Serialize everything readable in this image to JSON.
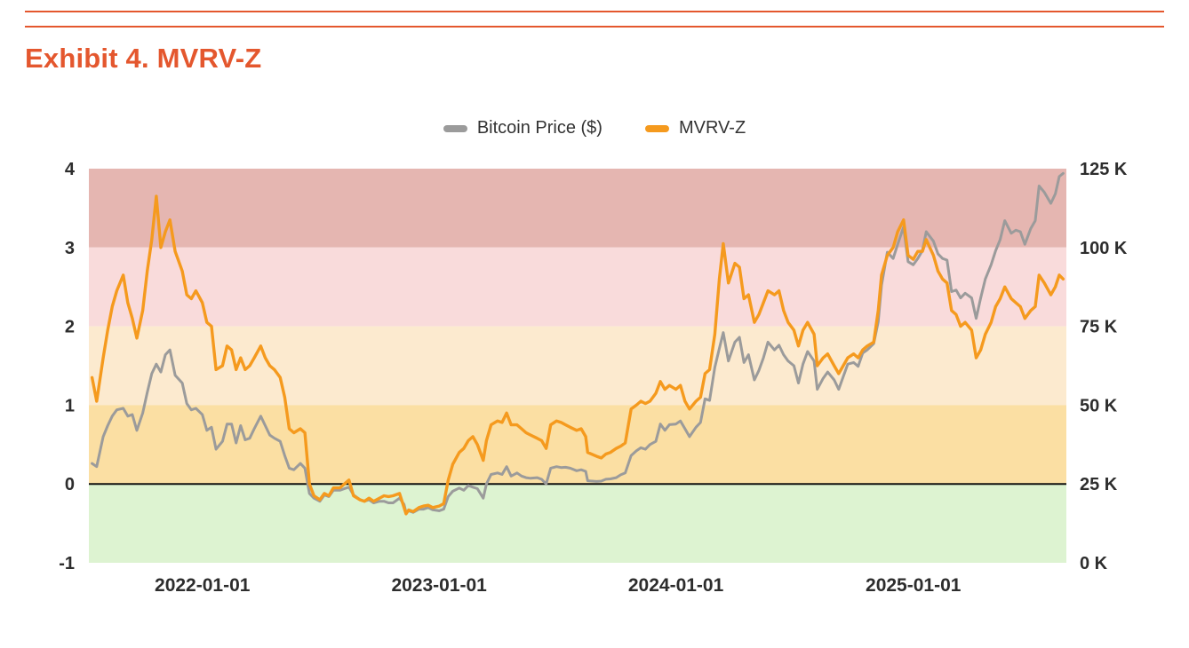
{
  "page": {
    "title": "Exhibit 4. MVRV-Z",
    "accent_color": "#E4572E"
  },
  "chart_data": {
    "type": "line",
    "title": "Exhibit 4. MVRV-Z",
    "legend_position": "top-center",
    "grid": false,
    "x_domain": [
      "2021-07-10",
      "2025-08-25"
    ],
    "x_ticks": [
      {
        "value": "2022-01-01",
        "label": "2022-01-01"
      },
      {
        "value": "2023-01-01",
        "label": "2023-01-01"
      },
      {
        "value": "2024-01-01",
        "label": "2024-01-01"
      },
      {
        "value": "2025-01-01",
        "label": "2025-01-01"
      }
    ],
    "left_axis": {
      "min": -1,
      "max": 4,
      "ticks": [
        {
          "value": 4,
          "label": "4"
        },
        {
          "value": 3,
          "label": "3"
        },
        {
          "value": 2,
          "label": "2"
        },
        {
          "value": 1,
          "label": "1"
        },
        {
          "value": 0,
          "label": "0"
        },
        {
          "value": -1,
          "label": "-1"
        }
      ]
    },
    "right_axis": {
      "min": 0,
      "max": 125,
      "ticks": [
        {
          "value": 125,
          "label": "125 K"
        },
        {
          "value": 100,
          "label": "100 K"
        },
        {
          "value": 75,
          "label": "75 K"
        },
        {
          "value": 50,
          "label": "50 K"
        },
        {
          "value": 25,
          "label": "25 K"
        },
        {
          "value": 0,
          "label": "0 K"
        }
      ]
    },
    "bands": [
      {
        "from": 3,
        "to": 4,
        "color": "#E5B6B1",
        "label": "3-to-4"
      },
      {
        "from": 2,
        "to": 3,
        "color": "#F9DBDB",
        "label": "2-to-3"
      },
      {
        "from": 1,
        "to": 2,
        "color": "#FCEACF",
        "label": "1-to-2"
      },
      {
        "from": 0,
        "to": 1,
        "color": "#FBDFA3",
        "label": "0-to-1"
      },
      {
        "from": -1,
        "to": 0,
        "color": "#DDF3D1",
        "label": "minus1-to-0"
      }
    ],
    "zero_line": {
      "value": 0,
      "color": "#111111",
      "width": 2
    },
    "series": [
      {
        "name": "Bitcoin Price ($)",
        "column": "btc_price_k",
        "axis": "right",
        "color": "#9B9B9B",
        "width": 3,
        "unit": "thousand USD"
      },
      {
        "name": "MVRV-Z",
        "column": "mvrv_z",
        "axis": "left",
        "color": "#F59A1E",
        "width": 3.4
      }
    ],
    "columns": [
      "date",
      "btc_price_k",
      "mvrv_z"
    ],
    "rows": [
      [
        "2021-07-15",
        31.5,
        1.35
      ],
      [
        "2021-07-22",
        30.5,
        1.05
      ],
      [
        "2021-08-01",
        40,
        1.6
      ],
      [
        "2021-08-08",
        43.5,
        1.95
      ],
      [
        "2021-08-15",
        46.5,
        2.25
      ],
      [
        "2021-08-22",
        48.5,
        2.45
      ],
      [
        "2021-09-01",
        49,
        2.65
      ],
      [
        "2021-09-08",
        46.5,
        2.3
      ],
      [
        "2021-09-15",
        47,
        2.1
      ],
      [
        "2021-09-22",
        42,
        1.85
      ],
      [
        "2021-10-01",
        47.5,
        2.2
      ],
      [
        "2021-10-08",
        54,
        2.7
      ],
      [
        "2021-10-15",
        60,
        3.1
      ],
      [
        "2021-10-22",
        63,
        3.65
      ],
      [
        "2021-10-29",
        60.5,
        3.0
      ],
      [
        "2021-11-05",
        66,
        3.2
      ],
      [
        "2021-11-12",
        67.5,
        3.35
      ],
      [
        "2021-11-20",
        59.5,
        2.95
      ],
      [
        "2021-12-01",
        57,
        2.7
      ],
      [
        "2021-12-08",
        50.5,
        2.4
      ],
      [
        "2021-12-15",
        48.5,
        2.35
      ],
      [
        "2021-12-22",
        49,
        2.45
      ],
      [
        "2022-01-01",
        47,
        2.3
      ],
      [
        "2022-01-08",
        42,
        2.05
      ],
      [
        "2022-01-15",
        43,
        2.0
      ],
      [
        "2022-01-22",
        36,
        1.45
      ],
      [
        "2022-02-01",
        38.5,
        1.5
      ],
      [
        "2022-02-08",
        44,
        1.75
      ],
      [
        "2022-02-15",
        44,
        1.7
      ],
      [
        "2022-02-22",
        38,
        1.45
      ],
      [
        "2022-03-01",
        43.5,
        1.6
      ],
      [
        "2022-03-08",
        39,
        1.45
      ],
      [
        "2022-03-15",
        39.5,
        1.5
      ],
      [
        "2022-03-22",
        42.5,
        1.6
      ],
      [
        "2022-04-01",
        46.5,
        1.75
      ],
      [
        "2022-04-08",
        43.5,
        1.6
      ],
      [
        "2022-04-15",
        40.5,
        1.5
      ],
      [
        "2022-04-22",
        39.5,
        1.45
      ],
      [
        "2022-05-01",
        38.5,
        1.35
      ],
      [
        "2022-05-08",
        34,
        1.1
      ],
      [
        "2022-05-15",
        30,
        0.7
      ],
      [
        "2022-05-22",
        29.5,
        0.65
      ],
      [
        "2022-06-01",
        31.5,
        0.7
      ],
      [
        "2022-06-08",
        30,
        0.65
      ],
      [
        "2022-06-15",
        22,
        0.0
      ],
      [
        "2022-06-22",
        20.5,
        -0.15
      ],
      [
        "2022-07-01",
        19.5,
        -0.2
      ],
      [
        "2022-07-08",
        21.5,
        -0.12
      ],
      [
        "2022-07-15",
        21,
        -0.15
      ],
      [
        "2022-07-22",
        23,
        -0.05
      ],
      [
        "2022-08-01",
        23,
        -0.05
      ],
      [
        "2022-08-08",
        23.5,
        0.0
      ],
      [
        "2022-08-15",
        24,
        0.05
      ],
      [
        "2022-08-22",
        21.5,
        -0.15
      ],
      [
        "2022-09-01",
        20,
        -0.2
      ],
      [
        "2022-09-08",
        19.5,
        -0.22
      ],
      [
        "2022-09-15",
        20,
        -0.18
      ],
      [
        "2022-09-22",
        19,
        -0.22
      ],
      [
        "2022-10-01",
        19.5,
        -0.18
      ],
      [
        "2022-10-08",
        19.5,
        -0.15
      ],
      [
        "2022-10-15",
        19,
        -0.16
      ],
      [
        "2022-10-22",
        19,
        -0.15
      ],
      [
        "2022-11-01",
        20.5,
        -0.12
      ],
      [
        "2022-11-08",
        18.5,
        -0.3
      ],
      [
        "2022-11-11",
        16,
        -0.38
      ],
      [
        "2022-11-15",
        16.5,
        -0.33
      ],
      [
        "2022-11-22",
        16,
        -0.35
      ],
      [
        "2022-12-01",
        17,
        -0.3
      ],
      [
        "2022-12-08",
        17,
        -0.28
      ],
      [
        "2022-12-15",
        17.5,
        -0.27
      ],
      [
        "2022-12-22",
        16.8,
        -0.3
      ],
      [
        "2023-01-01",
        16.5,
        -0.28
      ],
      [
        "2023-01-08",
        17,
        -0.25
      ],
      [
        "2023-01-15",
        21,
        0.05
      ],
      [
        "2023-01-22",
        22.7,
        0.25
      ],
      [
        "2023-02-01",
        23.7,
        0.4
      ],
      [
        "2023-02-08",
        23,
        0.45
      ],
      [
        "2023-02-15",
        24.5,
        0.55
      ],
      [
        "2023-02-22",
        24,
        0.6
      ],
      [
        "2023-03-01",
        23.5,
        0.5
      ],
      [
        "2023-03-10",
        20.5,
        0.3
      ],
      [
        "2023-03-15",
        25,
        0.55
      ],
      [
        "2023-03-22",
        28,
        0.75
      ],
      [
        "2023-04-01",
        28.5,
        0.8
      ],
      [
        "2023-04-08",
        28,
        0.78
      ],
      [
        "2023-04-15",
        30.5,
        0.9
      ],
      [
        "2023-04-22",
        27.5,
        0.75
      ],
      [
        "2023-05-01",
        28.5,
        0.75
      ],
      [
        "2023-05-08",
        27.5,
        0.7
      ],
      [
        "2023-05-15",
        27,
        0.65
      ],
      [
        "2023-05-22",
        26.8,
        0.62
      ],
      [
        "2023-06-01",
        27,
        0.58
      ],
      [
        "2023-06-08",
        26.5,
        0.55
      ],
      [
        "2023-06-15",
        25,
        0.45
      ],
      [
        "2023-06-22",
        30,
        0.75
      ],
      [
        "2023-07-01",
        30.5,
        0.8
      ],
      [
        "2023-07-08",
        30.2,
        0.78
      ],
      [
        "2023-07-15",
        30.3,
        0.75
      ],
      [
        "2023-07-22",
        30,
        0.72
      ],
      [
        "2023-08-01",
        29.2,
        0.68
      ],
      [
        "2023-08-08",
        29.5,
        0.7
      ],
      [
        "2023-08-15",
        29,
        0.6
      ],
      [
        "2023-08-18",
        26,
        0.4
      ],
      [
        "2023-09-01",
        25.8,
        0.35
      ],
      [
        "2023-09-08",
        25.9,
        0.33
      ],
      [
        "2023-09-15",
        26.5,
        0.38
      ],
      [
        "2023-09-22",
        26.6,
        0.4
      ],
      [
        "2023-10-01",
        27,
        0.45
      ],
      [
        "2023-10-08",
        27.9,
        0.48
      ],
      [
        "2023-10-15",
        28.5,
        0.52
      ],
      [
        "2023-10-24",
        34,
        0.95
      ],
      [
        "2023-11-01",
        35.5,
        1.0
      ],
      [
        "2023-11-08",
        36.5,
        1.05
      ],
      [
        "2023-11-15",
        36,
        1.02
      ],
      [
        "2023-11-22",
        37.5,
        1.05
      ],
      [
        "2023-12-01",
        38.5,
        1.15
      ],
      [
        "2023-12-08",
        44,
        1.3
      ],
      [
        "2023-12-15",
        42,
        1.2
      ],
      [
        "2023-12-22",
        43.8,
        1.25
      ],
      [
        "2024-01-01",
        44,
        1.2
      ],
      [
        "2024-01-08",
        45,
        1.25
      ],
      [
        "2024-01-15",
        42.5,
        1.05
      ],
      [
        "2024-01-22",
        40,
        0.95
      ],
      [
        "2024-02-01",
        43,
        1.05
      ],
      [
        "2024-02-08",
        44.5,
        1.1
      ],
      [
        "2024-02-15",
        52,
        1.4
      ],
      [
        "2024-02-22",
        51.5,
        1.45
      ],
      [
        "2024-03-01",
        62,
        1.9
      ],
      [
        "2024-03-08",
        68,
        2.6
      ],
      [
        "2024-03-14",
        73,
        3.05
      ],
      [
        "2024-03-22",
        64,
        2.55
      ],
      [
        "2024-04-01",
        70,
        2.8
      ],
      [
        "2024-04-08",
        71.5,
        2.75
      ],
      [
        "2024-04-15",
        63.5,
        2.35
      ],
      [
        "2024-04-22",
        66,
        2.4
      ],
      [
        "2024-05-01",
        58,
        2.05
      ],
      [
        "2024-05-08",
        61,
        2.15
      ],
      [
        "2024-05-15",
        65,
        2.3
      ],
      [
        "2024-05-22",
        70,
        2.45
      ],
      [
        "2024-06-01",
        67.5,
        2.4
      ],
      [
        "2024-06-08",
        69,
        2.45
      ],
      [
        "2024-06-15",
        66,
        2.2
      ],
      [
        "2024-06-22",
        64,
        2.05
      ],
      [
        "2024-07-01",
        62.5,
        1.95
      ],
      [
        "2024-07-08",
        57,
        1.75
      ],
      [
        "2024-07-15",
        63,
        1.95
      ],
      [
        "2024-07-22",
        67,
        2.05
      ],
      [
        "2024-08-01",
        64,
        1.9
      ],
      [
        "2024-08-06",
        55,
        1.5
      ],
      [
        "2024-08-15",
        58.5,
        1.6
      ],
      [
        "2024-08-22",
        60.5,
        1.65
      ],
      [
        "2024-09-01",
        58,
        1.5
      ],
      [
        "2024-09-08",
        55,
        1.4
      ],
      [
        "2024-09-15",
        59,
        1.5
      ],
      [
        "2024-09-22",
        63,
        1.6
      ],
      [
        "2024-10-01",
        63.5,
        1.65
      ],
      [
        "2024-10-08",
        62.3,
        1.6
      ],
      [
        "2024-10-15",
        66.5,
        1.7
      ],
      [
        "2024-10-22",
        67.5,
        1.75
      ],
      [
        "2024-11-01",
        69.5,
        1.8
      ],
      [
        "2024-11-08",
        76.5,
        2.2
      ],
      [
        "2024-11-13",
        88,
        2.65
      ],
      [
        "2024-11-22",
        98.5,
        2.9
      ],
      [
        "2024-12-01",
        96.5,
        3.0
      ],
      [
        "2024-12-08",
        101,
        3.2
      ],
      [
        "2024-12-17",
        106.5,
        3.35
      ],
      [
        "2024-12-24",
        95.5,
        2.9
      ],
      [
        "2025-01-01",
        94.5,
        2.85
      ],
      [
        "2025-01-08",
        96.5,
        2.95
      ],
      [
        "2025-01-15",
        99,
        2.95
      ],
      [
        "2025-01-21",
        105,
        3.1
      ],
      [
        "2025-02-01",
        102,
        2.9
      ],
      [
        "2025-02-08",
        98,
        2.7
      ],
      [
        "2025-02-15",
        96.5,
        2.6
      ],
      [
        "2025-02-22",
        96,
        2.55
      ],
      [
        "2025-03-01",
        86,
        2.2
      ],
      [
        "2025-03-08",
        86.5,
        2.15
      ],
      [
        "2025-03-15",
        84,
        2.0
      ],
      [
        "2025-03-22",
        85.5,
        2.05
      ],
      [
        "2025-04-01",
        84,
        1.95
      ],
      [
        "2025-04-08",
        77.5,
        1.6
      ],
      [
        "2025-04-15",
        84,
        1.7
      ],
      [
        "2025-04-22",
        90,
        1.9
      ],
      [
        "2025-05-01",
        94.5,
        2.05
      ],
      [
        "2025-05-08",
        99,
        2.25
      ],
      [
        "2025-05-15",
        102.5,
        2.35
      ],
      [
        "2025-05-22",
        108.5,
        2.5
      ],
      [
        "2025-06-01",
        104.5,
        2.35
      ],
      [
        "2025-06-08",
        105.5,
        2.3
      ],
      [
        "2025-06-15",
        105,
        2.25
      ],
      [
        "2025-06-22",
        101,
        2.1
      ],
      [
        "2025-07-01",
        106,
        2.2
      ],
      [
        "2025-07-08",
        108.5,
        2.25
      ],
      [
        "2025-07-14",
        119.5,
        2.65
      ],
      [
        "2025-07-22",
        117.5,
        2.55
      ],
      [
        "2025-08-01",
        114,
        2.4
      ],
      [
        "2025-08-08",
        117,
        2.5
      ],
      [
        "2025-08-14",
        122.5,
        2.65
      ],
      [
        "2025-08-20",
        123.5,
        2.6
      ]
    ]
  }
}
